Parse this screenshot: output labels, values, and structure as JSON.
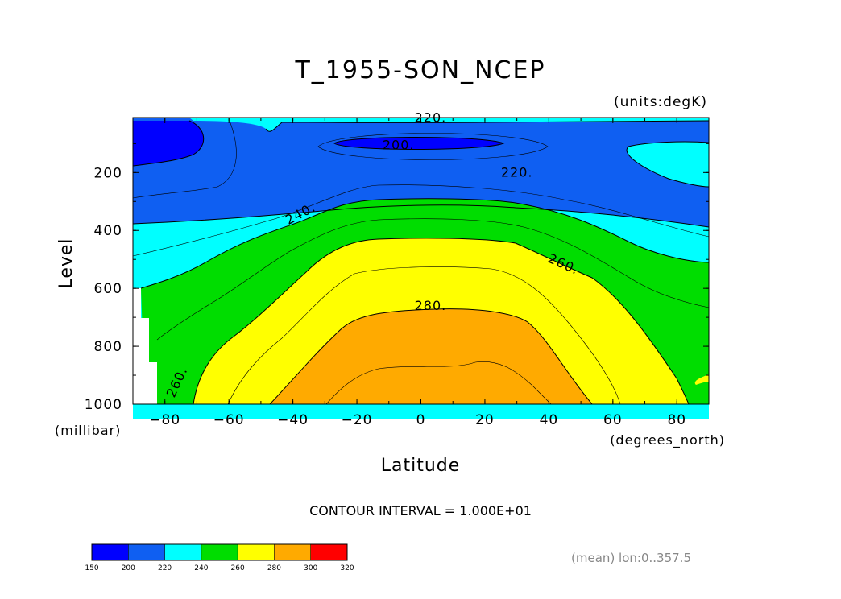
{
  "chart_data": {
    "type": "heatmap",
    "subtype": "filled-contour",
    "title": "T_1955-SON_NCEP",
    "units_label": "(units:degK)",
    "xlabel": "Latitude",
    "x_units": "(degrees_north)",
    "ylabel": "Level",
    "y_units": "(millibar)",
    "xlim": [
      -90,
      90
    ],
    "ylim": [
      1000,
      10
    ],
    "y_inverted": true,
    "x_ticks": [
      "-80",
      "-60",
      "-40",
      "-20",
      "0",
      "20",
      "40",
      "60",
      "80"
    ],
    "x_tick_values": [
      -80,
      -60,
      -40,
      -20,
      0,
      20,
      40,
      60,
      80
    ],
    "y_ticks": [
      "200",
      "400",
      "600",
      "800",
      "1000"
    ],
    "y_tick_values": [
      200,
      400,
      600,
      800,
      1000
    ],
    "contour_interval_text": "CONTOUR INTERVAL = 1.000E+01",
    "annotation": "(mean) lon:0..357.5",
    "contour_labels": [
      {
        "text": "220.",
        "lat": 3,
        "level": 25
      },
      {
        "text": "200.",
        "lat": -7,
        "level": 120
      },
      {
        "text": "220.",
        "lat": 30,
        "level": 215
      },
      {
        "text": "240.",
        "lat": -37,
        "level": 355
      },
      {
        "text": "260.",
        "lat": 44,
        "level": 530
      },
      {
        "text": "280.",
        "lat": 3,
        "level": 675
      },
      {
        "text": "260.",
        "lat": -75,
        "level": 930
      }
    ],
    "colorbar": {
      "boundaries": [
        150,
        200,
        220,
        240,
        260,
        280,
        300,
        320
      ],
      "labels": [
        "150",
        "200",
        "220",
        "240",
        "260",
        "280",
        "300",
        "320"
      ],
      "colors": [
        "#0000ff",
        "#0f5ff2",
        "#00ffff",
        "#00dd00",
        "#ffff00",
        "#ffaa00",
        "#ff0000"
      ]
    },
    "regions": [
      {
        "range": "200-220",
        "color": "#0f5ff2",
        "lat": [
          -90,
          90
        ],
        "level": [
          10,
          330
        ]
      },
      {
        "range": "150-200",
        "color": "#0000ff",
        "lat": [
          -90,
          -68
        ],
        "level": [
          10,
          180
        ]
      },
      {
        "range": "150-200",
        "color": "#0000ff",
        "lat": [
          -22,
          25
        ],
        "level": [
          75,
          120
        ]
      },
      {
        "range": "220-240",
        "color": "#00ffff",
        "lat": [
          -90,
          90
        ],
        "level": [
          190,
          600
        ]
      },
      {
        "range": "220-240",
        "color": "#00ffff",
        "lat": [
          63,
          90
        ],
        "level": [
          90,
          230
        ]
      },
      {
        "range": "240-260",
        "color": "#00dd00",
        "lat": [
          -85,
          90
        ],
        "level": [
          290,
          1000
        ]
      },
      {
        "range": "260-280",
        "color": "#ffff00",
        "lat": [
          -70,
          90
        ],
        "level": [
          420,
          1000
        ]
      },
      {
        "range": "280-300",
        "color": "#ffaa00",
        "lat": [
          -46,
          54
        ],
        "level": [
          670,
          1000
        ]
      }
    ]
  }
}
